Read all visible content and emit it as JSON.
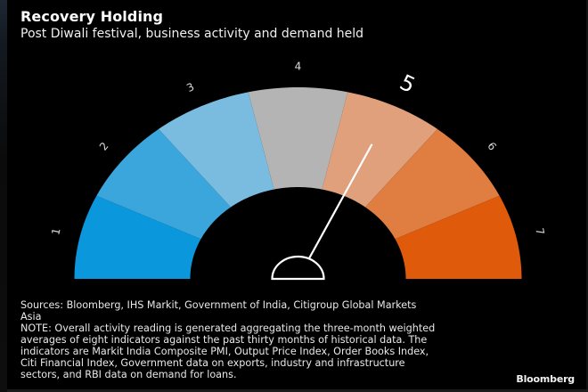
{
  "header": {
    "title": "Recovery Holding",
    "subtitle": "Post Diwali festival, business activity and demand held"
  },
  "chart_data": {
    "type": "gauge",
    "title": "Recovery Holding",
    "subtitle": "Post Diwali festival, business activity and demand held",
    "segments": [
      {
        "label": "1",
        "color": "#0b97db"
      },
      {
        "label": "2",
        "color": "#3aa6dc"
      },
      {
        "label": "3",
        "color": "#7abbe0"
      },
      {
        "label": "4",
        "color": "#b4b4b4"
      },
      {
        "label": "5",
        "color": "#e0a07c"
      },
      {
        "label": "6",
        "color": "#e07d40"
      },
      {
        "label": "7",
        "color": "#df5a0a"
      }
    ],
    "scale_min": 0,
    "scale_max": 7,
    "reading": 5,
    "needle_value": 4.48,
    "highlighted_label": "5",
    "needle_color": "#ffffff"
  },
  "notes": {
    "lines": [
      "Sources: Bloomberg, IHS Markit, Government of India, Citigroup Global Markets",
      "Asia",
      "NOTE: Overall activity reading is generated aggregating the three-month weighted",
      "averages of eight indicators against the past thirty months of historical data. The",
      "indicators are Markit India Composite PMI, Output Price Index, Order Books Index,",
      "Citi Financial Index, Government data on exports, industry and infrastructure",
      "sectors, and RBI data on demand for loans."
    ]
  },
  "brand": {
    "name": "Bloomberg"
  }
}
